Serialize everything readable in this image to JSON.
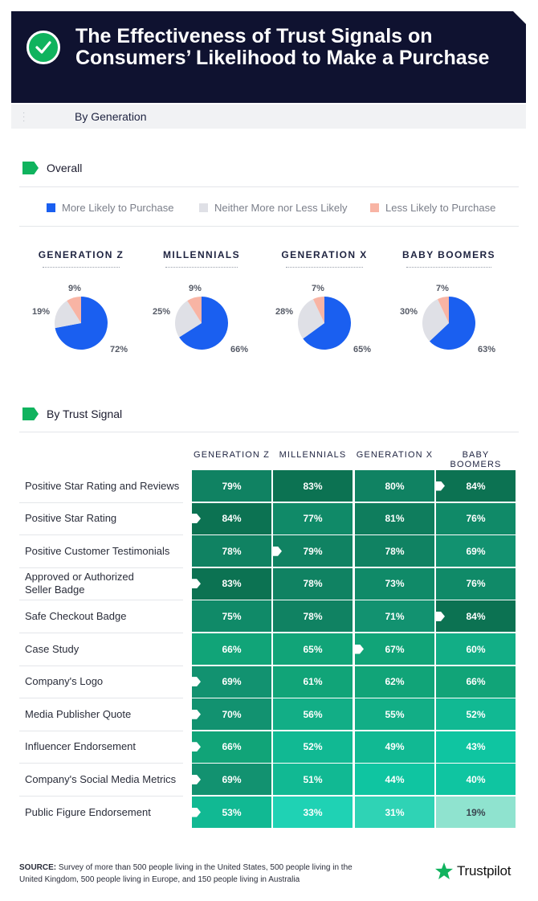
{
  "header": {
    "title": "The Effectiveness of Trust Signals on Consumers’ Likelihood to Make a Purchase",
    "subtitle": "By Generation",
    "check_icon": "check-circle-icon"
  },
  "sections": {
    "overall": "Overall",
    "by_signal": "By Trust Signal"
  },
  "colors": {
    "more_likely": "#1a5ff0",
    "neither": "#dfe0e6",
    "less_likely": "#f8b4a4",
    "brand_green": "#10b35e",
    "navy": "#0f1230"
  },
  "legend": [
    {
      "label": "More Likely to Purchase",
      "color": "#1a5ff0"
    },
    {
      "label": "Neither More nor Less Likely",
      "color": "#dfe0e6"
    },
    {
      "label": "Less Likely to Purchase",
      "color": "#f8b4a4"
    }
  ],
  "chart_data": [
    {
      "type": "pie",
      "title": "Overall",
      "slice_labels": [
        "More Likely to Purchase",
        "Neither More nor Less Likely",
        "Less Likely to Purchase"
      ],
      "charts": [
        {
          "title": "GENERATION Z",
          "values": [
            72,
            19,
            9
          ],
          "labels": [
            "72%",
            "19%",
            "9%"
          ]
        },
        {
          "title": "MILLENNIALS",
          "values": [
            66,
            25,
            9
          ],
          "labels": [
            "66%",
            "25%",
            "9%"
          ]
        },
        {
          "title": "GENERATION X",
          "values": [
            65,
            28,
            7
          ],
          "labels": [
            "65%",
            "28%",
            "7%"
          ]
        },
        {
          "title": "BABY BOOMERS",
          "values": [
            63,
            30,
            7
          ],
          "labels": [
            "63%",
            "30%",
            "7%"
          ]
        }
      ]
    },
    {
      "type": "heatmap",
      "title": "By Trust Signal",
      "columns": [
        "GENERATION Z",
        "MILLENNIALS",
        "GENERATION X",
        "BABY BOOMERS"
      ],
      "rows": [
        {
          "label": "Positive Star Rating and Reviews",
          "values": [
            79,
            83,
            80,
            84
          ],
          "highest_col": 3
        },
        {
          "label": "Positive Star Rating",
          "values": [
            84,
            77,
            81,
            76
          ],
          "highest_col": 0
        },
        {
          "label": "Positive Customer Testimonials",
          "values": [
            78,
            79,
            78,
            69
          ],
          "highest_col": 1
        },
        {
          "label": "Approved or Authorized Seller Badge",
          "values": [
            83,
            78,
            73,
            76
          ],
          "highest_col": 0
        },
        {
          "label": "Safe Checkout Badge",
          "values": [
            75,
            78,
            71,
            84
          ],
          "highest_col": 3
        },
        {
          "label": "Case Study",
          "values": [
            66,
            65,
            67,
            60
          ],
          "highest_col": 2
        },
        {
          "label": "Company's Logo",
          "values": [
            69,
            61,
            62,
            66
          ],
          "highest_col": 0
        },
        {
          "label": "Media Publisher Quote",
          "values": [
            70,
            56,
            55,
            52
          ],
          "highest_col": 0
        },
        {
          "label": "Influencer Endorsement",
          "values": [
            66,
            52,
            49,
            43
          ],
          "highest_col": 0
        },
        {
          "label": "Company's Social Media Metrics",
          "values": [
            69,
            51,
            44,
            40
          ],
          "highest_col": 0
        },
        {
          "label": "Public Figure Endorsement",
          "values": [
            53,
            33,
            31,
            19
          ],
          "highest_col": 0
        }
      ],
      "value_suffix": "%"
    }
  ],
  "footer": {
    "source_label": "SOURCE:",
    "source_text": "Survey of more than 500 people living in the United States, 500 people living in the United Kingdom, 500 people living in Europe, and 150 people living in Australia",
    "brand": "Trustpilot",
    "brand_icon": "star-icon"
  }
}
